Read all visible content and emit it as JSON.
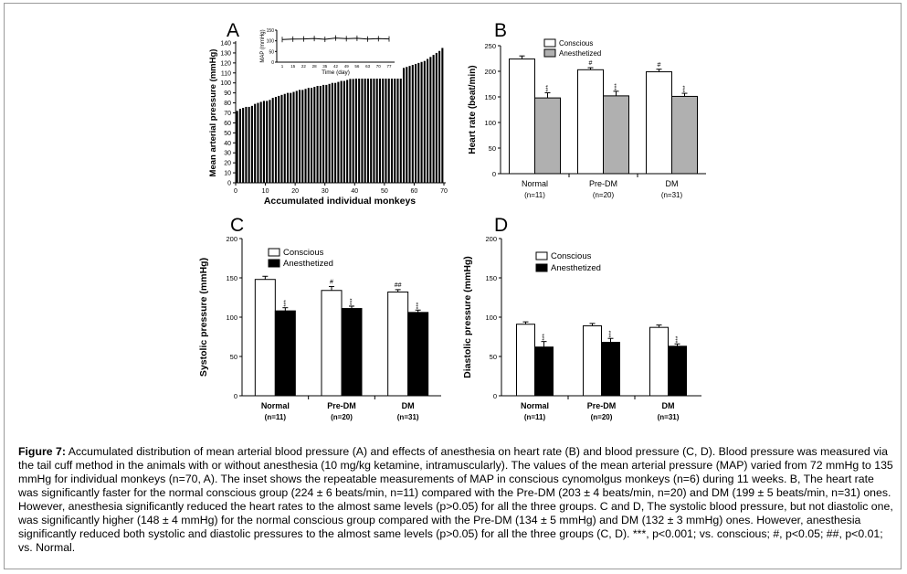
{
  "chart_data": [
    {
      "id": "A",
      "type": "bar",
      "panel_label": "A",
      "xlabel": "Accumulated individual monkeys",
      "ylabel": "Mean arterial pressure (mmHg)",
      "xlim": [
        0,
        70
      ],
      "ylim": [
        0,
        140
      ],
      "xticks": [
        0,
        10,
        20,
        30,
        40,
        50,
        60,
        70
      ],
      "yticks": [
        0,
        10,
        20,
        30,
        40,
        50,
        60,
        70,
        80,
        90,
        100,
        110,
        120,
        130,
        140
      ],
      "min_value": 72,
      "max_value": 135,
      "values": [
        72,
        74,
        75,
        76,
        76,
        77,
        79,
        80,
        81,
        82,
        82,
        83,
        85,
        86,
        87,
        88,
        89,
        90,
        90,
        91,
        92,
        93,
        93,
        94,
        95,
        95,
        96,
        97,
        97,
        98,
        98,
        99,
        100,
        100,
        101,
        102,
        102,
        103,
        104,
        104,
        105,
        106,
        107,
        107,
        108,
        108,
        109,
        110,
        110,
        111,
        112,
        112,
        113,
        113,
        114,
        115,
        115,
        116,
        117,
        118,
        119,
        120,
        121,
        122,
        124,
        126,
        128,
        130,
        132,
        135
      ],
      "inset": {
        "ylabel": "MAP (mmHg)",
        "xlabel": "Time (day)",
        "yticks": [
          0,
          50,
          100,
          150
        ],
        "xticks": [
          "1",
          "15",
          "22",
          "28",
          "35",
          "42",
          "49",
          "56",
          "63",
          "70",
          "77"
        ],
        "ylim": [
          0,
          150
        ],
        "values": [
          106,
          108,
          109,
          111,
          107,
          113,
          110,
          112,
          108,
          110,
          109
        ]
      }
    },
    {
      "id": "B",
      "type": "bar",
      "panel_label": "B",
      "ylabel": "Heart rate (beat/min)",
      "ylim": [
        0,
        250
      ],
      "yticks": [
        0,
        50,
        100,
        150,
        200,
        250
      ],
      "categories": [
        "Normal",
        "Pre-DM",
        "DM"
      ],
      "category_n": [
        "(n=11)",
        "(n=20)",
        "(n=31)"
      ],
      "legend_position": "top-right",
      "series": [
        {
          "name": "Conscious",
          "color": "#ffffff",
          "values": [
            224,
            203,
            199
          ],
          "errors": [
            6,
            4,
            5
          ],
          "marks": [
            "",
            "#",
            "#"
          ]
        },
        {
          "name": "Anesthetized",
          "color": "#b0b0b0",
          "values": [
            148,
            152,
            151
          ],
          "errors": [
            10,
            9,
            6
          ],
          "marks": [
            "***",
            "***",
            "***"
          ]
        }
      ]
    },
    {
      "id": "C",
      "type": "bar",
      "panel_label": "C",
      "ylabel": "Systolic pressure (mmHg)",
      "ylim": [
        0,
        200
      ],
      "yticks": [
        0,
        50,
        100,
        150,
        200
      ],
      "categories": [
        "Normal",
        "Pre-DM",
        "DM"
      ],
      "category_n": [
        "(n=11)",
        "(n=20)",
        "(n=31)"
      ],
      "legend_position": "top-center",
      "series": [
        {
          "name": "Conscious",
          "color": "#ffffff",
          "values": [
            148,
            134,
            132
          ],
          "errors": [
            4,
            5,
            3
          ],
          "marks": [
            "",
            "#",
            "##"
          ]
        },
        {
          "name": "Anesthetized",
          "color": "#000000",
          "values": [
            108,
            111,
            106
          ],
          "errors": [
            4,
            3,
            3
          ],
          "marks": [
            "***",
            "***",
            "***"
          ]
        }
      ]
    },
    {
      "id": "D",
      "type": "bar",
      "panel_label": "D",
      "ylabel": "Diastolic pressure (mmHg)",
      "ylim": [
        0,
        200
      ],
      "yticks": [
        0,
        50,
        100,
        150,
        200
      ],
      "categories": [
        "Normal",
        "Pre-DM",
        "DM"
      ],
      "category_n": [
        "(n=11)",
        "(n=20)",
        "(n=31)"
      ],
      "legend_position": "top-center",
      "series": [
        {
          "name": "Conscious",
          "color": "#ffffff",
          "values": [
            91,
            89,
            87
          ],
          "errors": [
            3,
            3,
            3
          ],
          "marks": [
            "",
            "",
            ""
          ]
        },
        {
          "name": "Anesthetized",
          "color": "#000000",
          "values": [
            62,
            68,
            63
          ],
          "errors": [
            7,
            5,
            3
          ],
          "marks": [
            "***",
            "***",
            "***"
          ]
        }
      ]
    }
  ],
  "caption": {
    "label": "Figure 7:",
    "text": "Accumulated distribution of mean arterial blood pressure (A) and effects of anesthesia on heart rate (B) and blood pressure (C, D). Blood pressure was measured via the tail cuff method in the animals with or without anesthesia (10 mg/kg ketamine, intramuscularly). The values of the mean arterial pressure (MAP) varied from 72 mmHg to 135 mmHg for individual monkeys (n=70, A). The inset shows the repeatable measurements of MAP in conscious cynomolgus monkeys (n=6) during 11 weeks. B, The heart rate was significantly faster for the normal conscious group (224 ± 6 beats/min, n=11) compared with the Pre-DM (203 ± 4 beats/min, n=20) and DM (199 ± 5 beats/min, n=31) ones. However, anesthesia significantly reduced the heart rates to the almost same levels (p>0.05) for all the three groups. C and D, The systolic blood pressure, but not diastolic one, was significantly higher (148 ± 4 mmHg) for the normal conscious group compared with the Pre-DM (134 ± 5 mmHg) and DM (132 ± 3 mmHg) ones. However, anesthesia significantly reduced both systolic and diastolic pressures to the almost same levels (p>0.05) for all the three groups (C, D). ***, p<0.001; vs. conscious; #, p<0.05; ##, p<0.01; vs. Normal."
  }
}
